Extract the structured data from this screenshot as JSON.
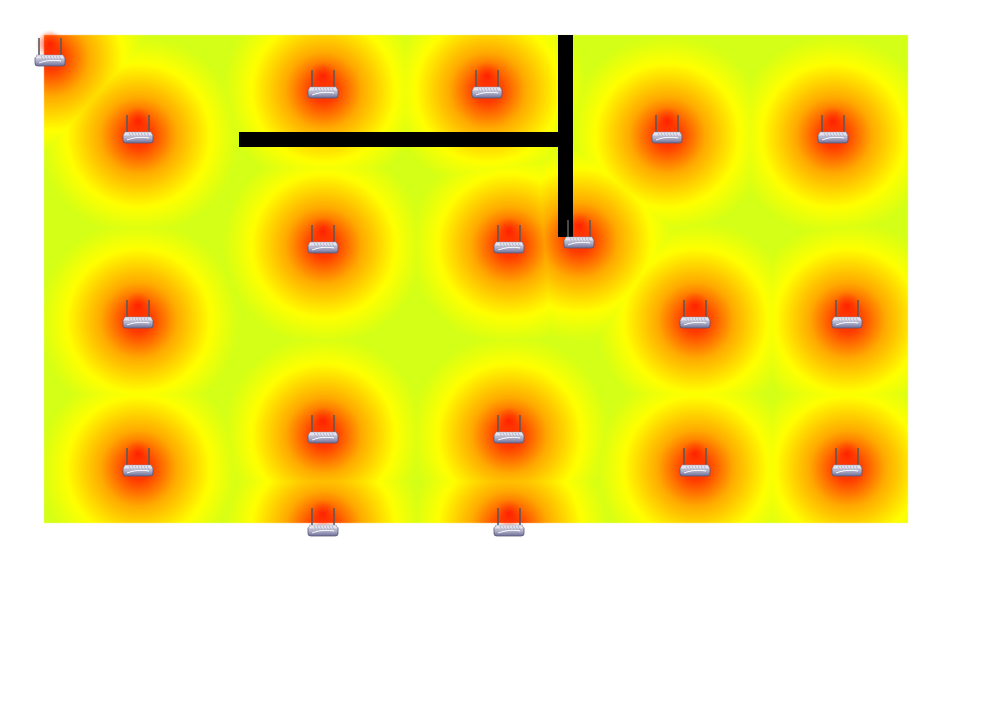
{
  "floor_plan": {
    "colors": {
      "weak": "#d4ff16",
      "mid": "#ffff00",
      "strong": "#ff3000",
      "wall": "#000000",
      "background": "#ffffff"
    },
    "walls": 2,
    "access_points": [
      {
        "id": "ap-1"
      },
      {
        "id": "ap-2"
      },
      {
        "id": "ap-3"
      },
      {
        "id": "ap-4"
      },
      {
        "id": "ap-5"
      },
      {
        "id": "ap-6"
      },
      {
        "id": "ap-7"
      },
      {
        "id": "ap-8"
      },
      {
        "id": "ap-9"
      },
      {
        "id": "ap-10"
      },
      {
        "id": "ap-11"
      },
      {
        "id": "ap-12"
      },
      {
        "id": "ap-13"
      },
      {
        "id": "ap-14"
      },
      {
        "id": "ap-15"
      },
      {
        "id": "ap-16"
      },
      {
        "id": "ap-17"
      },
      {
        "id": "ap-18"
      },
      {
        "id": "ap-19"
      }
    ],
    "icon": "wireless-router-icon"
  }
}
